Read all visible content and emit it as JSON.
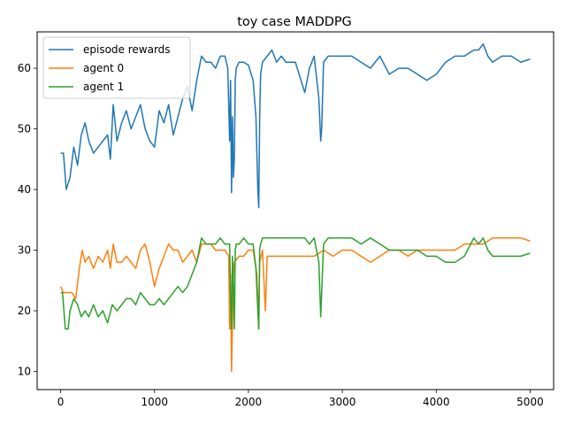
{
  "chart_data": {
    "type": "line",
    "title": "toy case MADDPG",
    "xlabel": "",
    "ylabel": "",
    "xlim": [
      -250,
      5250
    ],
    "ylim": [
      7,
      66
    ],
    "x_ticks": [
      0,
      1000,
      2000,
      3000,
      4000,
      5000
    ],
    "y_ticks": [
      10,
      20,
      30,
      40,
      50,
      60
    ],
    "grid": false,
    "legend_position": "top-left",
    "series": [
      {
        "name": "episode rewards",
        "color": "#1f77b4",
        "x": [
          0,
          30,
          60,
          100,
          140,
          180,
          220,
          260,
          300,
          350,
          400,
          450,
          500,
          530,
          560,
          600,
          650,
          700,
          750,
          800,
          850,
          900,
          950,
          1000,
          1050,
          1100,
          1150,
          1200,
          1250,
          1300,
          1350,
          1400,
          1450,
          1500,
          1550,
          1600,
          1650,
          1700,
          1750,
          1780,
          1800,
          1810,
          1820,
          1830,
          1840,
          1850,
          1860,
          1870,
          1900,
          1950,
          2000,
          2050,
          2080,
          2100,
          2110,
          2120,
          2130,
          2150,
          2200,
          2250,
          2300,
          2350,
          2400,
          2500,
          2600,
          2650,
          2700,
          2750,
          2770,
          2780,
          2800,
          2850,
          2900,
          3000,
          3100,
          3200,
          3300,
          3400,
          3500,
          3600,
          3700,
          3800,
          3900,
          4000,
          4100,
          4200,
          4300,
          4400,
          4450,
          4500,
          4550,
          4600,
          4700,
          4800,
          4900,
          5000
        ],
        "y": [
          46,
          46,
          40,
          42,
          47,
          44,
          49,
          51,
          48,
          46,
          47,
          48,
          49,
          45,
          54,
          48,
          51,
          53,
          50,
          52,
          54,
          50,
          48,
          47,
          53,
          51,
          54,
          49,
          52,
          55,
          57,
          53,
          58,
          62,
          61,
          61,
          60,
          62,
          62,
          60,
          48,
          58,
          39.5,
          52,
          42,
          45,
          58,
          60,
          61,
          61,
          60.5,
          58,
          52,
          40,
          37,
          52,
          59,
          61,
          62,
          63,
          61,
          62,
          61,
          61,
          56,
          60,
          62,
          55,
          48,
          50,
          61,
          62,
          62,
          62,
          62,
          61,
          60,
          62,
          59,
          60,
          60,
          59,
          58,
          59,
          61,
          62,
          62,
          63,
          63,
          64,
          62,
          61,
          62,
          62,
          61,
          61.5
        ]
      },
      {
        "name": "agent 0",
        "color": "#ff7f0e",
        "x": [
          0,
          30,
          80,
          120,
          160,
          200,
          230,
          260,
          300,
          350,
          400,
          450,
          500,
          530,
          560,
          600,
          650,
          700,
          750,
          800,
          850,
          900,
          950,
          1000,
          1050,
          1100,
          1150,
          1200,
          1250,
          1300,
          1350,
          1400,
          1450,
          1500,
          1550,
          1600,
          1650,
          1700,
          1750,
          1790,
          1800,
          1810,
          1820,
          1830,
          1840,
          1850,
          1900,
          1950,
          2000,
          2050,
          2090,
          2100,
          2110,
          2120,
          2150,
          2180,
          2200,
          2250,
          2300,
          2400,
          2500,
          2600,
          2700,
          2800,
          2900,
          3000,
          3100,
          3200,
          3300,
          3400,
          3500,
          3600,
          3700,
          3800,
          3900,
          4000,
          4100,
          4200,
          4300,
          4400,
          4500,
          4600,
          4700,
          4800,
          4900,
          5000
        ],
        "y": [
          24,
          23,
          23,
          23,
          22,
          27,
          30,
          28,
          29,
          27,
          29,
          28,
          30,
          27,
          31,
          28,
          28,
          29,
          28,
          27,
          30,
          31,
          28,
          24,
          27,
          29,
          31,
          30,
          30,
          28,
          29,
          30,
          28,
          31,
          31,
          31,
          30,
          30,
          30,
          29,
          17,
          26,
          10,
          18,
          26,
          28,
          29,
          29,
          30,
          30,
          26,
          22,
          17,
          28,
          30,
          20,
          29,
          29,
          29,
          29,
          29,
          29,
          29,
          30,
          29,
          30,
          30,
          29,
          28,
          29,
          30,
          30,
          29,
          30,
          30,
          30,
          30,
          30,
          31,
          31,
          31,
          32,
          32,
          32,
          32,
          31.5
        ]
      },
      {
        "name": "agent 1",
        "color": "#2ca02c",
        "x": [
          0,
          20,
          50,
          80,
          100,
          140,
          180,
          220,
          260,
          300,
          350,
          400,
          450,
          500,
          550,
          600,
          650,
          700,
          750,
          800,
          850,
          900,
          950,
          1000,
          1050,
          1100,
          1150,
          1200,
          1250,
          1300,
          1350,
          1400,
          1450,
          1500,
          1550,
          1600,
          1650,
          1700,
          1750,
          1780,
          1800,
          1810,
          1820,
          1830,
          1840,
          1850,
          1860,
          1870,
          1900,
          1950,
          2000,
          2050,
          2080,
          2100,
          2110,
          2120,
          2130,
          2150,
          2200,
          2300,
          2400,
          2500,
          2600,
          2650,
          2700,
          2750,
          2770,
          2780,
          2800,
          2850,
          2900,
          3000,
          3100,
          3200,
          3300,
          3400,
          3500,
          3600,
          3700,
          3800,
          3900,
          4000,
          4100,
          4200,
          4300,
          4400,
          4450,
          4500,
          4550,
          4600,
          4700,
          4800,
          4900,
          5000
        ],
        "y": [
          23,
          23,
          17,
          17,
          20,
          22,
          21,
          19,
          20,
          19,
          21,
          19,
          20,
          18,
          21,
          20,
          21,
          22,
          22,
          21,
          23,
          22,
          21,
          21,
          22,
          21,
          22,
          23,
          24,
          23,
          24,
          26,
          28,
          32,
          31,
          31,
          31,
          32,
          31,
          31,
          31,
          22,
          17,
          29,
          24,
          17,
          30,
          31,
          31,
          32,
          31,
          31,
          27,
          20,
          17,
          30,
          31,
          32,
          32,
          32,
          32,
          32,
          32,
          31,
          32,
          28,
          19,
          23,
          31,
          32,
          32,
          32,
          32,
          31,
          32,
          31,
          30,
          30,
          30,
          30,
          29,
          29,
          28,
          28,
          29,
          32,
          31,
          32,
          30,
          29,
          29,
          29,
          29,
          29.5
        ]
      }
    ]
  }
}
